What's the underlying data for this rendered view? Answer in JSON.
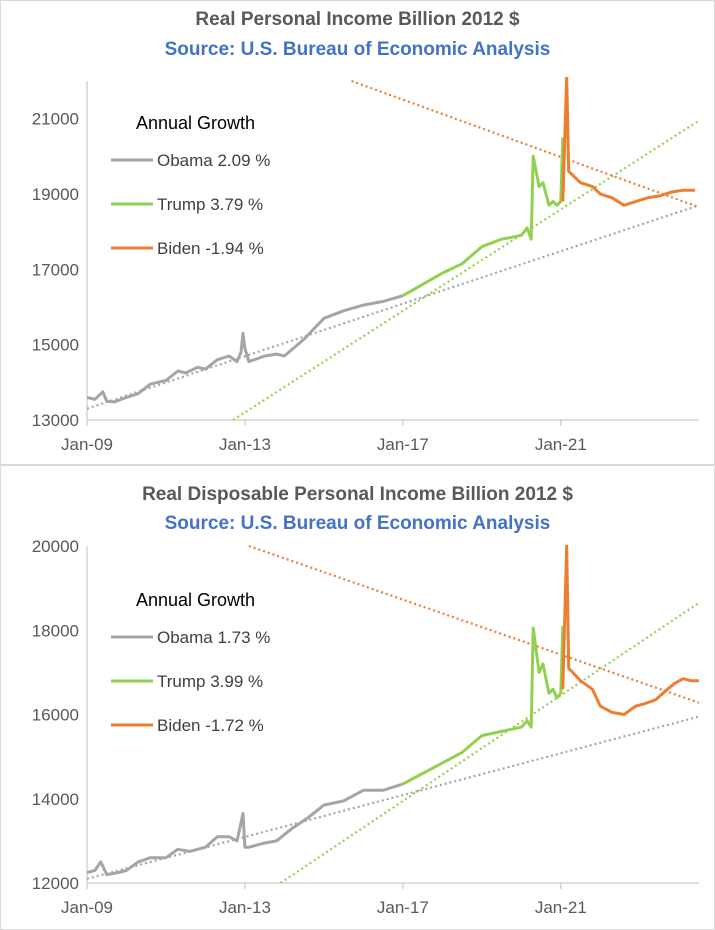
{
  "colors": {
    "obama": "#a5a5a5",
    "trump": "#92d050",
    "biden": "#ed7d31",
    "subtitle": "#4472c4",
    "title": "#595959"
  },
  "chart_data": [
    {
      "type": "line",
      "title": "Real Personal Income Billion 2012 $",
      "subtitle": "Source: U.S. Bureau of Economic Analysis",
      "xlabel": "",
      "ylabel": "",
      "x_ticks": [
        "Jan-09",
        "Jan-13",
        "Jan-17",
        "Jan-21"
      ],
      "y_ticks": [
        13000,
        15000,
        17000,
        19000,
        21000
      ],
      "ylim": [
        13000,
        22000
      ],
      "xlim": [
        2009.0,
        2024.5
      ],
      "grid": false,
      "legend": {
        "position": "top-left",
        "heading": "Annual Growth"
      },
      "series": [
        {
          "name": "Obama 2.09 %",
          "color": "obama",
          "x": [
            2009.0,
            2009.2,
            2009.4,
            2009.5,
            2009.7,
            2010.0,
            2010.3,
            2010.6,
            2011.0,
            2011.3,
            2011.5,
            2011.8,
            2012.0,
            2012.3,
            2012.6,
            2012.8,
            2012.9,
            2012.95,
            2013.0,
            2013.1,
            2013.5,
            2013.8,
            2014.0,
            2014.5,
            2015.0,
            2015.5,
            2016.0,
            2016.5,
            2017.0
          ],
          "y": [
            13600,
            13550,
            13750,
            13500,
            13480,
            13600,
            13700,
            13950,
            14050,
            14300,
            14250,
            14400,
            14350,
            14600,
            14700,
            14550,
            14800,
            15300,
            14900,
            14550,
            14700,
            14750,
            14700,
            15150,
            15700,
            15900,
            16050,
            16150,
            16300
          ]
        },
        {
          "name": "Trump 3.79 %",
          "color": "trump",
          "x": [
            2017.0,
            2017.5,
            2018.0,
            2018.5,
            2019.0,
            2019.5,
            2020.0,
            2020.15,
            2020.25,
            2020.3,
            2020.45,
            2020.55,
            2020.7,
            2020.8,
            2020.9,
            2021.0,
            2021.05
          ],
          "y": [
            16300,
            16600,
            16900,
            17150,
            17600,
            17800,
            17900,
            18100,
            17800,
            20000,
            19200,
            19300,
            18700,
            18800,
            18700,
            18800,
            20500
          ]
        },
        {
          "name": "Biden -1.94 %",
          "color": "biden",
          "x": [
            2021.05,
            2021.15,
            2021.2,
            2021.3,
            2021.5,
            2021.8,
            2022.0,
            2022.3,
            2022.6,
            2022.9,
            2023.2,
            2023.5,
            2023.8,
            2024.1,
            2024.4
          ],
          "y": [
            18800,
            22100,
            19600,
            19500,
            19300,
            19200,
            19000,
            18900,
            18700,
            18800,
            18900,
            18950,
            19050,
            19100,
            19100
          ]
        }
      ],
      "trendlines": [
        {
          "series": "Obama",
          "from": [
            2009.0,
            13300
          ],
          "to": [
            2024.5,
            18700
          ]
        },
        {
          "series": "Trump",
          "from": [
            2012.7,
            13000
          ],
          "to": [
            2024.5,
            20950
          ]
        },
        {
          "series": "Biden",
          "from": [
            2015.7,
            22000
          ],
          "to": [
            2024.5,
            18650
          ]
        }
      ]
    },
    {
      "type": "line",
      "title": "Real Disposable Personal Income Billion 2012 $",
      "subtitle": "Source: U.S. Bureau of Economic Analysis",
      "xlabel": "",
      "ylabel": "",
      "x_ticks": [
        "Jan-09",
        "Jan-13",
        "Jan-17",
        "Jan-21"
      ],
      "y_ticks": [
        12000,
        14000,
        16000,
        18000,
        20000
      ],
      "ylim": [
        12000,
        20000
      ],
      "xlim": [
        2009.0,
        2024.5
      ],
      "grid": false,
      "legend": {
        "position": "top-left",
        "heading": "Annual Growth"
      },
      "series": [
        {
          "name": "Obama 1.73 %",
          "color": "obama",
          "x": [
            2009.0,
            2009.2,
            2009.35,
            2009.5,
            2009.8,
            2010.0,
            2010.3,
            2010.6,
            2011.0,
            2011.3,
            2011.6,
            2012.0,
            2012.3,
            2012.6,
            2012.8,
            2012.95,
            2013.0,
            2013.1,
            2013.5,
            2013.8,
            2014.2,
            2014.6,
            2015.0,
            2015.5,
            2016.0,
            2016.5,
            2017.0
          ],
          "y": [
            12250,
            12300,
            12500,
            12200,
            12250,
            12300,
            12500,
            12600,
            12600,
            12800,
            12750,
            12850,
            13100,
            13100,
            13000,
            13650,
            12850,
            12850,
            12950,
            13000,
            13300,
            13550,
            13850,
            13950,
            14200,
            14200,
            14350
          ]
        },
        {
          "name": "Trump 3.99 %",
          "color": "trump",
          "x": [
            2017.0,
            2017.5,
            2018.0,
            2018.5,
            2019.0,
            2019.5,
            2020.0,
            2020.15,
            2020.25,
            2020.3,
            2020.45,
            2020.55,
            2020.7,
            2020.8,
            2020.9,
            2021.0,
            2021.05
          ],
          "y": [
            14350,
            14600,
            14850,
            15100,
            15500,
            15600,
            15700,
            15850,
            15700,
            18050,
            17000,
            17200,
            16500,
            16600,
            16400,
            16500,
            18100
          ]
        },
        {
          "name": "Biden -1.72 %",
          "color": "biden",
          "x": [
            2021.05,
            2021.15,
            2021.2,
            2021.3,
            2021.5,
            2021.8,
            2022.0,
            2022.3,
            2022.6,
            2022.9,
            2023.1,
            2023.4,
            2023.7,
            2023.9,
            2024.1,
            2024.3,
            2024.5
          ],
          "y": [
            16600,
            20000,
            17100,
            17000,
            16800,
            16600,
            16200,
            16050,
            16000,
            16200,
            16250,
            16350,
            16600,
            16750,
            16850,
            16800,
            16800
          ]
        }
      ],
      "trendlines": [
        {
          "series": "Obama",
          "from": [
            2009.0,
            12100
          ],
          "to": [
            2024.5,
            15950
          ]
        },
        {
          "series": "Trump",
          "from": [
            2013.9,
            12000
          ],
          "to": [
            2024.5,
            18650
          ]
        },
        {
          "series": "Biden",
          "from": [
            2013.1,
            20000
          ],
          "to": [
            2024.5,
            16280
          ]
        }
      ]
    }
  ]
}
